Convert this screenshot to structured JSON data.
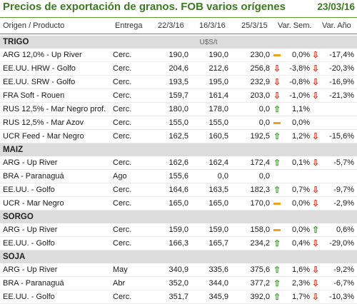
{
  "title": "Precios de exportación de granos. FOB varios orígenes",
  "date": "23/03/16",
  "headers": {
    "origin": "Origen / Producto",
    "entrega": "Entrega",
    "d1": "22/3/16",
    "d2": "16/3/16",
    "d3": "25/3/15",
    "var_sem": "Var. Sem.",
    "var_ano": "Var. Año"
  },
  "unit": "U$S/t",
  "sections": [
    {
      "name": "TRIGO",
      "rows": [
        {
          "origin": "ARG 12,0% - Up River",
          "entrega": "Cerc.",
          "d1": "190,0",
          "d2": "190,0",
          "d3": "230,0",
          "icon_sem": "flat",
          "sem": "0,0%",
          "icon_ano": "down",
          "ano": "-17,4%"
        },
        {
          "origin": "EE.UU. HRW - Golfo",
          "entrega": "Cerc.",
          "d1": "204,6",
          "d2": "212,6",
          "d3": "256,8",
          "icon_sem": "down",
          "sem": "-3,8%",
          "icon_ano": "down",
          "ano": "-20,3%"
        },
        {
          "origin": "EE.UU. SRW - Golfo",
          "entrega": "Cerc.",
          "d1": "193,5",
          "d2": "195,0",
          "d3": "232,9",
          "icon_sem": "down",
          "sem": "-0,8%",
          "icon_ano": "down",
          "ano": "-16,9%"
        },
        {
          "origin": "FRA Soft - Rouen",
          "entrega": "Cerc.",
          "d1": "159,7",
          "d2": "161,4",
          "d3": "203,0",
          "icon_sem": "down",
          "sem": "-1,0%",
          "icon_ano": "down",
          "ano": "-21,3%"
        },
        {
          "origin": "RUS 12,5% - Mar Negro prof.",
          "entrega": "Cerc.",
          "d1": "180,0",
          "d2": "178,0",
          "d3": "0,0",
          "icon_sem": "up",
          "sem": "1,1%",
          "icon_ano": "",
          "ano": ""
        },
        {
          "origin": "RUS 12,5% - Mar Azov",
          "entrega": "Cerc.",
          "d1": "155,0",
          "d2": "155,0",
          "d3": "0,0",
          "icon_sem": "flat",
          "sem": "0,0%",
          "icon_ano": "",
          "ano": ""
        },
        {
          "origin": "UCR Feed - Mar Negro",
          "entrega": "Cerc.",
          "d1": "162,5",
          "d2": "160,5",
          "d3": "192,5",
          "icon_sem": "up",
          "sem": "1,2%",
          "icon_ano": "down",
          "ano": "-15,6%"
        }
      ]
    },
    {
      "name": "MAIZ",
      "rows": [
        {
          "origin": "ARG - Up River",
          "entrega": "Cerc.",
          "d1": "162,6",
          "d2": "162,4",
          "d3": "172,4",
          "icon_sem": "up",
          "sem": "0,1%",
          "icon_ano": "down",
          "ano": "-5,7%"
        },
        {
          "origin": "BRA - Paranaguá",
          "entrega": "Ago",
          "d1": "155,6",
          "d2": "0,0",
          "d3": "0,0",
          "icon_sem": "",
          "sem": "",
          "icon_ano": "",
          "ano": ""
        },
        {
          "origin": "EE.UU. - Golfo",
          "entrega": "Cerc.",
          "d1": "164,6",
          "d2": "163,5",
          "d3": "182,3",
          "icon_sem": "up",
          "sem": "0,7%",
          "icon_ano": "down",
          "ano": "-9,7%"
        },
        {
          "origin": "UCR - Mar Negro",
          "entrega": "Cerc.",
          "d1": "165,0",
          "d2": "165,0",
          "d3": "170,0",
          "icon_sem": "flat",
          "sem": "0,0%",
          "icon_ano": "down",
          "ano": "-2,9%"
        }
      ]
    },
    {
      "name": "SORGO",
      "rows": [
        {
          "origin": "ARG - Up River",
          "entrega": "Cerc.",
          "d1": "159,0",
          "d2": "159,0",
          "d3": "158,0",
          "icon_sem": "flat",
          "sem": "0,0%",
          "icon_ano": "up",
          "ano": "0,6%"
        },
        {
          "origin": "EE.UU. - Golfo",
          "entrega": "Cerc.",
          "d1": "166,3",
          "d2": "165,7",
          "d3": "234,2",
          "icon_sem": "up",
          "sem": "0,4%",
          "icon_ano": "down",
          "ano": "-29,0%"
        }
      ]
    },
    {
      "name": "SOJA",
      "rows": [
        {
          "origin": "ARG - Up River",
          "entrega": "May",
          "d1": "340,9",
          "d2": "335,6",
          "d3": "375,6",
          "icon_sem": "up",
          "sem": "1,6%",
          "icon_ano": "down",
          "ano": "-9,2%"
        },
        {
          "origin": "BRA - Paranaguá",
          "entrega": "Abr",
          "d1": "352,0",
          "d2": "344,0",
          "d3": "377,2",
          "icon_sem": "up",
          "sem": "2,3%",
          "icon_ano": "down",
          "ano": "-6,7%"
        },
        {
          "origin": "EE.UU. - Golfo",
          "entrega": "Cerc.",
          "d1": "351,7",
          "d2": "345,9",
          "d3": "392,0",
          "icon_sem": "up",
          "sem": "1,7%",
          "icon_ano": "down",
          "ano": "-10,3%"
        }
      ]
    }
  ]
}
